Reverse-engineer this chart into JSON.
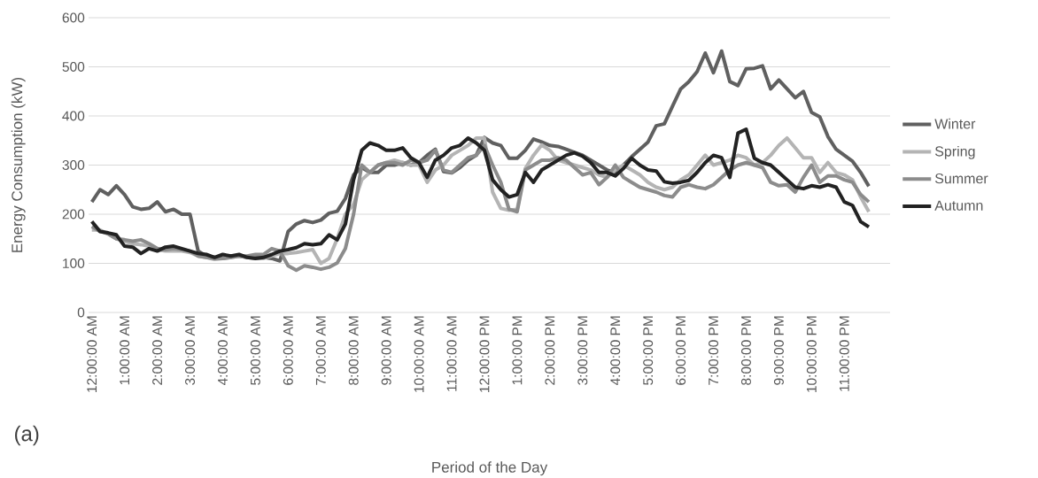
{
  "chart_data": {
    "type": "line",
    "xlabel": "Period of the Day",
    "ylabel": "Energy Consumption (kW)",
    "annotations": [
      "(a)"
    ],
    "x": [
      0,
      0.25,
      0.5,
      0.75,
      1,
      1.25,
      1.5,
      1.75,
      2,
      2.25,
      2.5,
      2.75,
      3,
      3.25,
      3.5,
      3.75,
      4,
      4.25,
      4.5,
      4.75,
      5,
      5.25,
      5.5,
      5.75,
      6,
      6.25,
      6.5,
      6.75,
      7,
      7.25,
      7.5,
      7.75,
      8,
      8.25,
      8.5,
      8.75,
      9,
      9.25,
      9.5,
      9.75,
      10,
      10.25,
      10.5,
      10.75,
      11,
      11.25,
      11.5,
      11.75,
      12,
      12.25,
      12.5,
      12.75,
      13,
      13.25,
      13.5,
      13.75,
      14,
      14.25,
      14.5,
      14.75,
      15,
      15.25,
      15.5,
      15.75,
      16,
      16.25,
      16.5,
      16.75,
      17,
      17.25,
      17.5,
      17.75,
      18,
      18.25,
      18.5,
      18.75,
      19,
      19.25,
      19.5,
      19.75,
      20,
      20.25,
      20.5,
      20.75,
      21,
      21.25,
      21.5,
      21.75,
      22,
      22.25,
      22.5,
      22.75,
      23,
      23.25,
      23.5,
      23.75
    ],
    "xlim": [
      -0.1,
      24.4
    ],
    "xticks": [
      {
        "value": 0,
        "label": "12:00:00 AM"
      },
      {
        "value": 1,
        "label": "1:00:00 AM"
      },
      {
        "value": 2,
        "label": "2:00:00 AM"
      },
      {
        "value": 3,
        "label": "3:00:00 AM"
      },
      {
        "value": 4,
        "label": "4:00:00 AM"
      },
      {
        "value": 5,
        "label": "5:00:00 AM"
      },
      {
        "value": 6,
        "label": "6:00:00 AM"
      },
      {
        "value": 7,
        "label": "7:00:00 AM"
      },
      {
        "value": 8,
        "label": "8:00:00 AM"
      },
      {
        "value": 9,
        "label": "9:00:00 AM"
      },
      {
        "value": 10,
        "label": "10:00:00 AM"
      },
      {
        "value": 11,
        "label": "11:00:00 AM"
      },
      {
        "value": 12,
        "label": "12:00:00 PM"
      },
      {
        "value": 13,
        "label": "1:00:00 PM"
      },
      {
        "value": 14,
        "label": "2:00:00 PM"
      },
      {
        "value": 15,
        "label": "3:00:00 PM"
      },
      {
        "value": 16,
        "label": "4:00:00 PM"
      },
      {
        "value": 17,
        "label": "5:00:00 PM"
      },
      {
        "value": 18,
        "label": "6:00:00 PM"
      },
      {
        "value": 19,
        "label": "7:00:00 PM"
      },
      {
        "value": 20,
        "label": "8:00:00 PM"
      },
      {
        "value": 21,
        "label": "9:00:00 PM"
      },
      {
        "value": 22,
        "label": "10:00:00 PM"
      },
      {
        "value": 23,
        "label": "11:00:00 PM"
      }
    ],
    "ylim": [
      0,
      600
    ],
    "yticks": [
      0,
      100,
      200,
      300,
      400,
      500,
      600
    ],
    "grid": "y",
    "legend": "right",
    "series": [
      {
        "name": "Winter",
        "color": "#606060",
        "values": [
          225,
          250,
          240,
          258,
          240,
          215,
          210,
          212,
          225,
          205,
          210,
          200,
          200,
          125,
          115,
          112,
          110,
          115,
          115,
          112,
          115,
          112,
          110,
          105,
          165,
          180,
          187,
          183,
          188,
          202,
          206,
          232,
          280,
          295,
          285,
          285,
          300,
          300,
          305,
          300,
          305,
          320,
          332,
          287,
          284,
          295,
          310,
          320,
          356,
          345,
          340,
          314,
          314,
          330,
          353,
          347,
          340,
          338,
          332,
          326,
          320,
          310,
          300,
          290,
          285,
          300,
          317,
          332,
          347,
          380,
          384,
          420,
          455,
          470,
          490,
          528,
          488,
          532,
          470,
          462,
          496,
          497,
          502,
          455,
          473,
          455,
          437,
          450,
          407,
          398,
          358,
          332,
          320,
          308,
          285,
          257
        ]
      },
      {
        "name": "Spring",
        "color": "#b4b4b4",
        "values": [
          168,
          168,
          160,
          150,
          145,
          140,
          138,
          135,
          128,
          125,
          125,
          125,
          122,
          115,
          112,
          108,
          110,
          112,
          115,
          112,
          110,
          110,
          115,
          120,
          120,
          122,
          125,
          128,
          100,
          110,
          150,
          200,
          220,
          270,
          285,
          300,
          305,
          310,
          305,
          300,
          300,
          265,
          290,
          300,
          320,
          330,
          340,
          355,
          355,
          245,
          212,
          208,
          210,
          293,
          320,
          341,
          330,
          310,
          305,
          300,
          295,
          290,
          280,
          275,
          290,
          300,
          290,
          280,
          265,
          255,
          250,
          255,
          270,
          280,
          300,
          320,
          300,
          305,
          310,
          320,
          315,
          300,
          305,
          320,
          340,
          355,
          335,
          315,
          315,
          285,
          305,
          285,
          280,
          270,
          235,
          205
        ]
      },
      {
        "name": "Summer",
        "color": "#8c8c8c",
        "values": [
          175,
          165,
          160,
          150,
          148,
          145,
          148,
          140,
          130,
          128,
          130,
          128,
          125,
          115,
          112,
          110,
          110,
          112,
          115,
          115,
          118,
          118,
          130,
          125,
          95,
          86,
          95,
          92,
          88,
          92,
          101,
          130,
          200,
          300,
          285,
          300,
          305,
          305,
          300,
          310,
          305,
          310,
          330,
          290,
          285,
          300,
          315,
          320,
          340,
          300,
          265,
          210,
          205,
          290,
          300,
          310,
          310,
          315,
          310,
          295,
          280,
          285,
          260,
          275,
          300,
          275,
          265,
          255,
          250,
          245,
          238,
          235,
          255,
          260,
          255,
          252,
          260,
          275,
          290,
          300,
          305,
          300,
          295,
          265,
          258,
          260,
          245,
          275,
          300,
          265,
          278,
          278,
          270,
          265,
          240,
          225
        ]
      },
      {
        "name": "Autumn",
        "color": "#222222",
        "values": [
          185,
          165,
          162,
          158,
          135,
          133,
          120,
          130,
          125,
          133,
          135,
          130,
          125,
          120,
          118,
          112,
          118,
          115,
          118,
          112,
          110,
          112,
          118,
          125,
          128,
          132,
          140,
          138,
          140,
          158,
          148,
          180,
          270,
          330,
          345,
          340,
          330,
          330,
          335,
          315,
          305,
          275,
          310,
          320,
          335,
          340,
          355,
          345,
          330,
          270,
          250,
          235,
          240,
          285,
          265,
          290,
          300,
          310,
          320,
          325,
          318,
          305,
          285,
          285,
          278,
          293,
          314,
          300,
          290,
          288,
          266,
          263,
          265,
          269,
          285,
          305,
          320,
          315,
          275,
          365,
          373,
          314,
          305,
          300,
          285,
          270,
          255,
          252,
          258,
          255,
          260,
          255,
          225,
          218,
          185,
          174
        ]
      }
    ]
  }
}
